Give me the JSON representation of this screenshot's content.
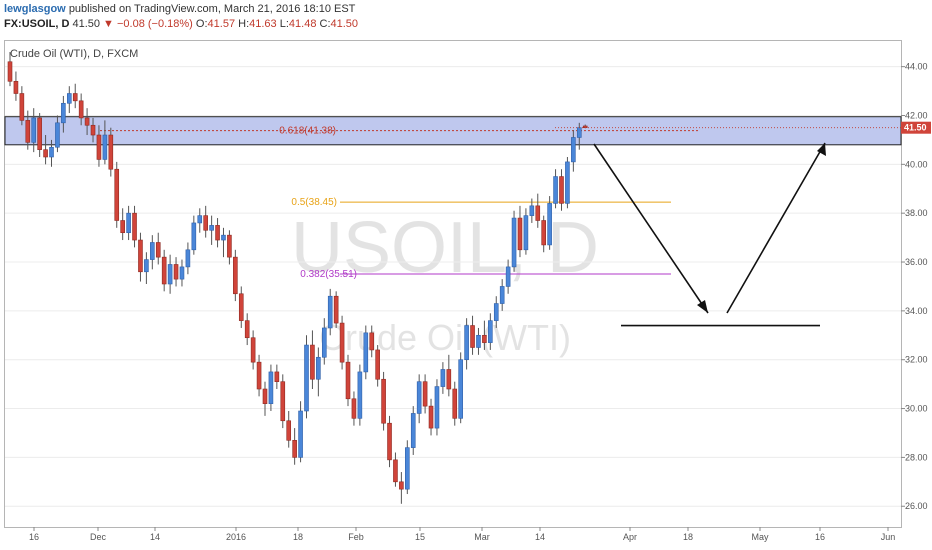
{
  "header": {
    "author": "lewglasgow",
    "published": "published on TradingView.com, March 21, 2016 18:10 EST",
    "symbol": "FX:USOIL, D",
    "last": "41.50",
    "change": "−0.08 (−0.18%)",
    "open_label": "O:",
    "open": "41.57",
    "high_label": "H:",
    "high": "41.63",
    "low_label": "L:",
    "low": "41.48",
    "close_label": "C:",
    "close": "41.50"
  },
  "chart_title": "Crude Oil (WTI), D, FXCM",
  "watermark": {
    "symbol": "USOIL, D",
    "name": "Crude Oil (WTI)"
  },
  "colors": {
    "up": "#4a86d8",
    "down": "#d0443a",
    "zone": "#aab6e8",
    "fib618": "#c0392b",
    "fib05": "#e8a317",
    "fib382": "#b03ac8"
  },
  "chart_data": {
    "type": "candlestick",
    "title": "Crude Oil (WTI), D, FXCM",
    "ylim": [
      25,
      45
    ],
    "yticks": [
      "26.00",
      "28.00",
      "30.00",
      "32.00",
      "34.00",
      "36.00",
      "38.00",
      "40.00",
      "42.00",
      "44.00"
    ],
    "xticks": [
      "16",
      "Dec",
      "14",
      "2016",
      "18",
      "Feb",
      "15",
      "Mar",
      "14",
      "Apr",
      "18",
      "May",
      "16",
      "Jun"
    ],
    "last_price_tag": "41.50",
    "fib_levels": [
      {
        "label": "0.618(41.38)",
        "value": 41.38
      },
      {
        "label": "0.5(38.45)",
        "value": 38.45
      },
      {
        "label": "0.382(35.51)",
        "value": 35.51
      }
    ],
    "zone": {
      "from": 40.8,
      "to": 41.95
    },
    "horizontal_line": 33.4,
    "candles": [
      [
        44.2,
        44.6,
        43.2,
        43.4
      ],
      [
        43.4,
        43.8,
        42.6,
        42.9
      ],
      [
        42.9,
        43.2,
        41.6,
        41.8
      ],
      [
        41.8,
        42.2,
        40.6,
        40.9
      ],
      [
        40.9,
        42.3,
        40.5,
        41.9
      ],
      [
        41.9,
        42.1,
        40.3,
        40.6
      ],
      [
        40.6,
        41.2,
        40.0,
        40.3
      ],
      [
        40.3,
        41.0,
        39.9,
        40.7
      ],
      [
        40.7,
        42.0,
        40.5,
        41.7
      ],
      [
        41.7,
        42.8,
        41.3,
        42.5
      ],
      [
        42.5,
        43.2,
        42.1,
        42.9
      ],
      [
        42.9,
        43.3,
        42.3,
        42.6
      ],
      [
        42.6,
        42.9,
        41.6,
        41.9
      ],
      [
        41.9,
        42.3,
        41.2,
        41.6
      ],
      [
        41.6,
        41.9,
        40.9,
        41.2
      ],
      [
        41.2,
        41.6,
        39.9,
        40.2
      ],
      [
        40.2,
        41.8,
        40.0,
        41.2
      ],
      [
        41.2,
        41.5,
        39.5,
        39.8
      ],
      [
        39.8,
        40.1,
        37.4,
        37.7
      ],
      [
        37.7,
        38.2,
        36.9,
        37.2
      ],
      [
        37.2,
        38.3,
        36.9,
        38.0
      ],
      [
        38.0,
        38.3,
        36.6,
        36.9
      ],
      [
        36.9,
        37.2,
        35.2,
        35.6
      ],
      [
        35.6,
        36.4,
        35.1,
        36.1
      ],
      [
        36.1,
        37.1,
        35.7,
        36.8
      ],
      [
        36.8,
        37.2,
        35.9,
        36.2
      ],
      [
        36.2,
        36.5,
        34.8,
        35.1
      ],
      [
        35.1,
        36.3,
        34.7,
        35.9
      ],
      [
        35.9,
        36.2,
        35.0,
        35.3
      ],
      [
        35.3,
        36.1,
        35.0,
        35.8
      ],
      [
        35.8,
        36.8,
        35.5,
        36.5
      ],
      [
        36.5,
        37.9,
        36.3,
        37.6
      ],
      [
        37.6,
        38.2,
        37.2,
        37.9
      ],
      [
        37.9,
        38.3,
        37.0,
        37.3
      ],
      [
        37.3,
        37.9,
        36.7,
        37.5
      ],
      [
        37.5,
        37.8,
        36.6,
        36.9
      ],
      [
        36.9,
        37.4,
        36.2,
        37.1
      ],
      [
        37.1,
        37.3,
        35.9,
        36.2
      ],
      [
        36.2,
        36.5,
        34.4,
        34.7
      ],
      [
        34.7,
        35.0,
        33.3,
        33.6
      ],
      [
        33.6,
        33.9,
        32.6,
        32.9
      ],
      [
        32.9,
        33.2,
        31.6,
        31.9
      ],
      [
        31.9,
        32.2,
        30.5,
        30.8
      ],
      [
        30.8,
        31.1,
        29.7,
        30.2
      ],
      [
        30.2,
        31.8,
        29.9,
        31.5
      ],
      [
        31.5,
        31.8,
        30.8,
        31.1
      ],
      [
        31.1,
        31.4,
        29.2,
        29.5
      ],
      [
        29.5,
        29.9,
        28.4,
        28.7
      ],
      [
        28.7,
        29.2,
        27.7,
        28.0
      ],
      [
        28.0,
        30.3,
        27.8,
        29.9
      ],
      [
        29.9,
        33.0,
        29.6,
        32.6
      ],
      [
        32.6,
        33.2,
        30.8,
        31.2
      ],
      [
        31.2,
        32.5,
        30.5,
        32.1
      ],
      [
        32.1,
        33.7,
        31.8,
        33.3
      ],
      [
        33.3,
        34.9,
        33.0,
        34.6
      ],
      [
        34.6,
        34.8,
        33.3,
        33.5
      ],
      [
        33.5,
        33.8,
        31.6,
        31.9
      ],
      [
        31.9,
        32.2,
        30.1,
        30.4
      ],
      [
        30.4,
        30.7,
        29.3,
        29.6
      ],
      [
        29.6,
        31.8,
        29.3,
        31.5
      ],
      [
        31.5,
        33.4,
        31.2,
        33.1
      ],
      [
        33.1,
        33.4,
        32.1,
        32.4
      ],
      [
        32.4,
        32.6,
        30.9,
        31.2
      ],
      [
        31.2,
        31.5,
        29.1,
        29.4
      ],
      [
        29.4,
        29.7,
        27.6,
        27.9
      ],
      [
        27.9,
        28.2,
        26.8,
        27.0
      ],
      [
        27.0,
        27.4,
        26.1,
        26.7
      ],
      [
        26.7,
        28.7,
        26.5,
        28.4
      ],
      [
        28.4,
        30.1,
        28.1,
        29.8
      ],
      [
        29.8,
        31.4,
        29.4,
        31.1
      ],
      [
        31.1,
        31.4,
        29.8,
        30.1
      ],
      [
        30.1,
        30.4,
        28.9,
        29.2
      ],
      [
        29.2,
        31.2,
        28.9,
        30.9
      ],
      [
        30.9,
        31.9,
        30.6,
        31.6
      ],
      [
        31.6,
        32.2,
        30.5,
        30.8
      ],
      [
        30.8,
        31.1,
        29.3,
        29.6
      ],
      [
        29.6,
        32.3,
        29.4,
        32.0
      ],
      [
        32.0,
        33.7,
        31.6,
        33.4
      ],
      [
        33.4,
        33.8,
        32.2,
        32.5
      ],
      [
        32.5,
        33.3,
        32.2,
        33.0
      ],
      [
        33.0,
        33.6,
        32.4,
        32.7
      ],
      [
        32.7,
        33.9,
        32.4,
        33.6
      ],
      [
        33.6,
        34.6,
        33.3,
        34.3
      ],
      [
        34.3,
        35.3,
        34.0,
        35.0
      ],
      [
        35.0,
        36.1,
        34.7,
        35.8
      ],
      [
        35.8,
        38.1,
        35.6,
        37.8
      ],
      [
        37.8,
        38.3,
        36.2,
        36.5
      ],
      [
        36.5,
        38.2,
        36.3,
        37.9
      ],
      [
        37.9,
        38.6,
        37.6,
        38.3
      ],
      [
        38.3,
        38.8,
        37.4,
        37.7
      ],
      [
        37.7,
        37.9,
        36.4,
        36.7
      ],
      [
        36.7,
        38.7,
        36.5,
        38.4
      ],
      [
        38.4,
        39.8,
        38.2,
        39.5
      ],
      [
        39.5,
        39.8,
        38.1,
        38.4
      ],
      [
        38.4,
        40.3,
        38.2,
        40.1
      ],
      [
        40.1,
        41.4,
        39.7,
        41.1
      ],
      [
        41.1,
        41.7,
        40.6,
        41.5
      ],
      [
        41.57,
        41.63,
        41.48,
        41.5
      ]
    ]
  }
}
